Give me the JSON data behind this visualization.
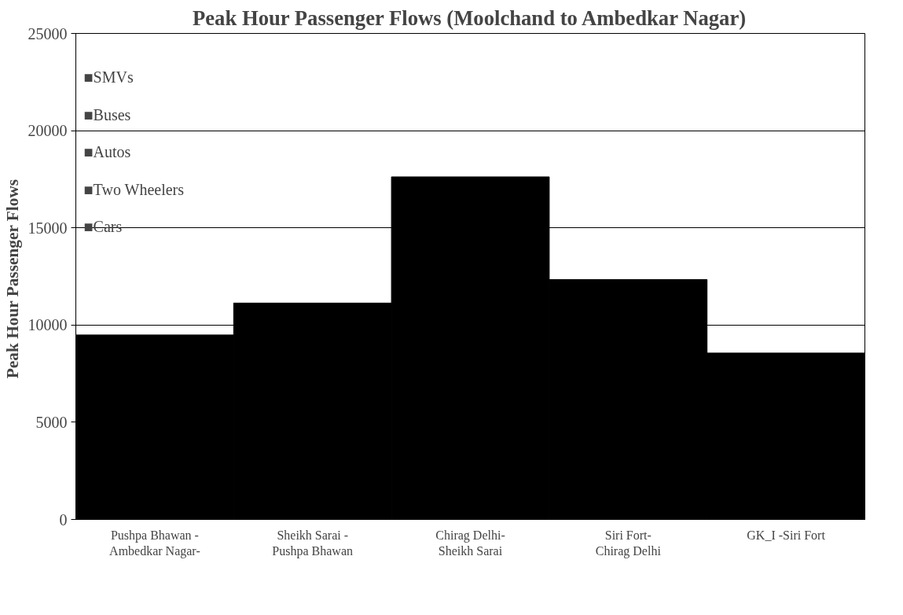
{
  "chart_data": {
    "type": "bar",
    "title": "Peak Hour Passenger Flows (Moolchand to Ambedkar Nagar)",
    "ylabel": "Peak Hour  Passenger Flows",
    "categories": [
      "Pushpa Bhawan - Ambedkar Nagar-",
      "Sheikh Sarai - Pushpa Bhawan",
      "Chirag Delhi- Sheikh Sarai",
      "Siri Fort-Chirag Delhi",
      "GK_I -Siri Fort"
    ],
    "values": [
      9490,
      11130,
      17620,
      12340,
      8560
    ],
    "color": "#000000",
    "annotations": [
      "■SMVs",
      "■Buses",
      "■Autos",
      "■Two Wheelers",
      "■Cars"
    ],
    "ylim": [
      0,
      25000
    ],
    "yticks": [
      0,
      5000,
      10000,
      15000,
      20000,
      25000
    ],
    "grid": "y"
  }
}
